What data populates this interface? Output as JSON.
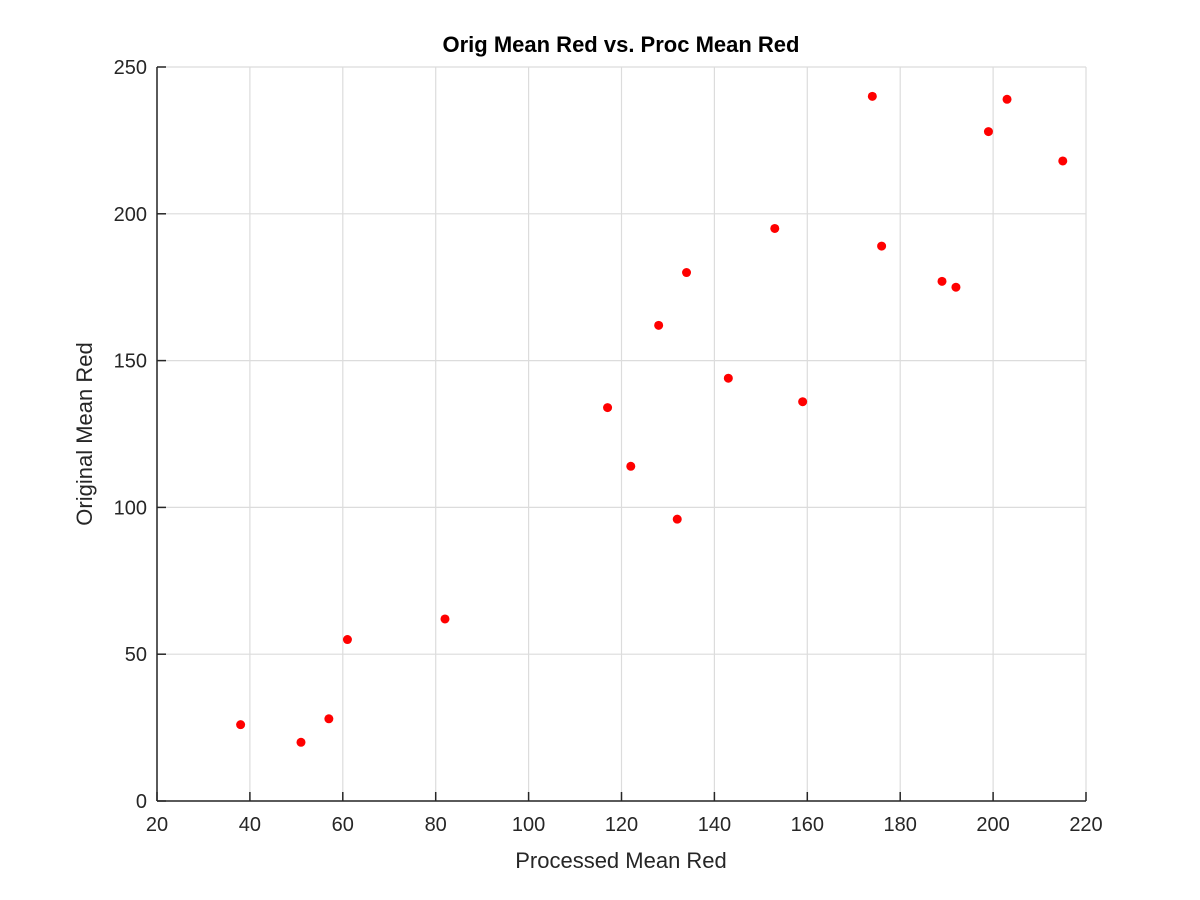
{
  "chart_data": {
    "type": "scatter",
    "title": "Orig Mean Red vs. Proc Mean Red",
    "xlabel": "Processed Mean Red",
    "ylabel": "Original Mean Red",
    "xlim": [
      20,
      220
    ],
    "ylim": [
      0,
      250
    ],
    "xticks": [
      20,
      40,
      60,
      80,
      100,
      120,
      140,
      160,
      180,
      200,
      220
    ],
    "yticks": [
      0,
      50,
      100,
      150,
      200,
      250
    ],
    "grid": true,
    "marker_color": "#ff0000",
    "series": [
      {
        "points": [
          {
            "x": 38,
            "y": 26
          },
          {
            "x": 51,
            "y": 20
          },
          {
            "x": 57,
            "y": 28
          },
          {
            "x": 61,
            "y": 55
          },
          {
            "x": 82,
            "y": 62
          },
          {
            "x": 117,
            "y": 134
          },
          {
            "x": 122,
            "y": 114
          },
          {
            "x": 128,
            "y": 162
          },
          {
            "x": 132,
            "y": 96
          },
          {
            "x": 134,
            "y": 180
          },
          {
            "x": 143,
            "y": 144
          },
          {
            "x": 153,
            "y": 195
          },
          {
            "x": 159,
            "y": 136
          },
          {
            "x": 174,
            "y": 240
          },
          {
            "x": 176,
            "y": 189
          },
          {
            "x": 189,
            "y": 177
          },
          {
            "x": 192,
            "y": 175
          },
          {
            "x": 199,
            "y": 228
          },
          {
            "x": 203,
            "y": 239
          },
          {
            "x": 215,
            "y": 218
          }
        ]
      }
    ]
  }
}
